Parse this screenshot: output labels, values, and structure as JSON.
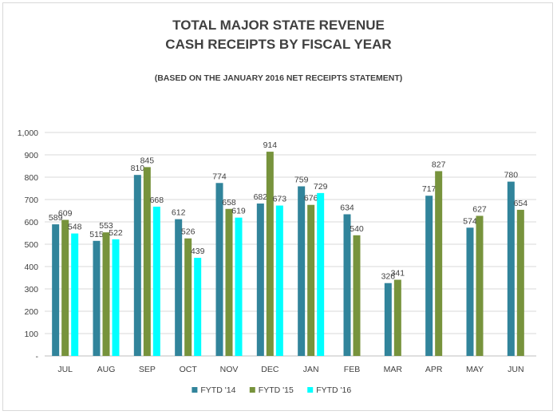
{
  "chart_data": {
    "type": "bar",
    "title": "TOTAL MAJOR STATE REVENUE",
    "title_line2": "CASH RECEIPTS BY FISCAL YEAR",
    "subtitle": "(BASED  ON THE JANUARY  2016 NET RECEIPTS  STATEMENT)",
    "categories": [
      "JUL",
      "AUG",
      "SEP",
      "OCT",
      "NOV",
      "DEC",
      "JAN",
      "FEB",
      "MAR",
      "APR",
      "MAY",
      "JUN"
    ],
    "series": [
      {
        "name": "FYTD '14",
        "color": "#31849b",
        "values": [
          589,
          515,
          810,
          612,
          774,
          682,
          759,
          634,
          326,
          717,
          574,
          780
        ]
      },
      {
        "name": "FYTD '15",
        "color": "#77933c",
        "values": [
          609,
          553,
          845,
          526,
          658,
          914,
          676,
          540,
          341,
          827,
          627,
          654
        ]
      },
      {
        "name": "FYTD '16",
        "color": "#00ffff",
        "values": [
          548,
          522,
          668,
          439,
          619,
          673,
          729,
          null,
          null,
          null,
          null,
          null
        ]
      }
    ],
    "ylim": [
      0,
      1000
    ],
    "y_ticks": [
      0,
      100,
      200,
      300,
      400,
      500,
      600,
      700,
      800,
      900,
      1000
    ],
    "y_tick_labels": [
      "-",
      "100",
      "200",
      "300",
      "400",
      "500",
      "600",
      "700",
      "800",
      "900",
      "1,000"
    ],
    "grid": true,
    "legend_position": "bottom",
    "xlabel": "",
    "ylabel": ""
  }
}
